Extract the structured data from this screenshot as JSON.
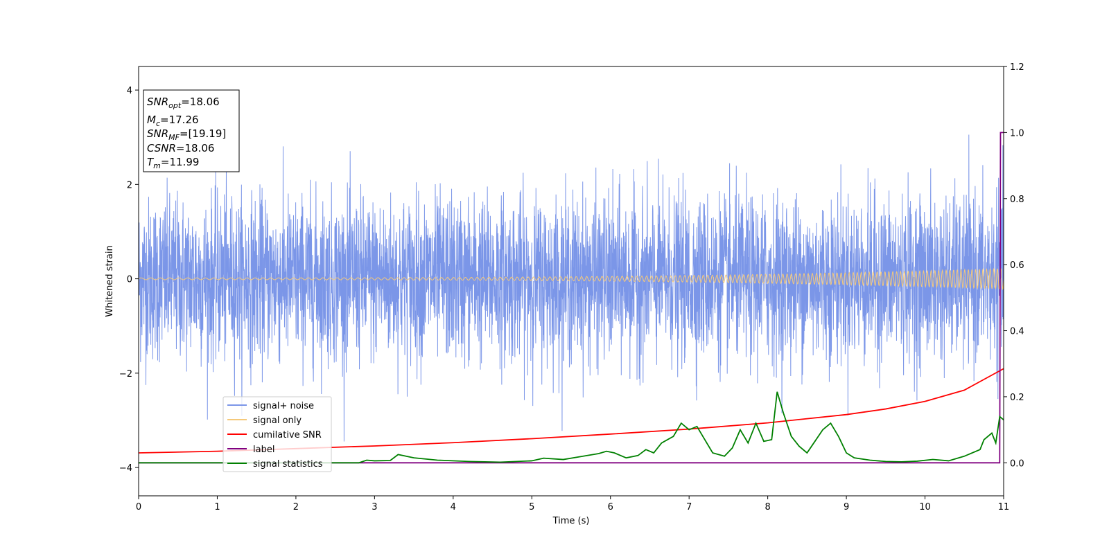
{
  "chart_data": {
    "type": "line",
    "xlabel": "Time (s)",
    "ylabel": "Whitened strain",
    "xlim": [
      0,
      11
    ],
    "ylim_left": [
      -4.6,
      4.5
    ],
    "ylim_right": [
      -0.1,
      1.2
    ],
    "x_ticks": [
      0,
      1,
      2,
      3,
      4,
      5,
      6,
      7,
      8,
      9,
      10,
      11
    ],
    "y_ticks_left": [
      -4,
      -2,
      0,
      2,
      4
    ],
    "y_ticks_right": [
      0.0,
      0.2,
      0.4,
      0.6,
      0.8,
      1.0,
      1.2
    ],
    "y_tick_labels_right": [
      "0.0",
      "0.2",
      "0.4",
      "0.6",
      "0.8",
      "1.0",
      "1.2"
    ],
    "grid": false,
    "legend_position": "lower-left",
    "series": [
      {
        "name": "signal+ noise",
        "color": "#7b96e8",
        "axis": "left",
        "kind": "noise",
        "mean": 0,
        "typical_range": [
          -1.8,
          1.8
        ],
        "peak_max": 3.4,
        "peak_min": -4.1
      },
      {
        "name": "signal only",
        "color": "#f5c97a",
        "axis": "left",
        "kind": "chirp",
        "amplitude_start": 0.02,
        "amplitude_end": 0.22
      },
      {
        "name": "cumilative SNR",
        "color": "#ff0000",
        "axis": "right",
        "x": [
          0,
          1,
          2,
          3,
          4,
          5,
          6,
          7,
          8,
          9,
          9.5,
          10,
          10.5,
          11
        ],
        "y": [
          0.03,
          0.035,
          0.043,
          0.051,
          0.061,
          0.073,
          0.087,
          0.102,
          0.121,
          0.146,
          0.163,
          0.186,
          0.22,
          0.285
        ]
      },
      {
        "name": "label",
        "color": "#800080",
        "axis": "right",
        "x": [
          0,
          10.95,
          10.96,
          11
        ],
        "y": [
          0.0,
          0.0,
          1.0,
          1.0
        ]
      },
      {
        "name": "signal statistics",
        "color": "#008000",
        "axis": "right",
        "x": [
          0,
          1,
          2,
          2.8,
          2.9,
          3.0,
          3.2,
          3.3,
          3.5,
          3.8,
          4.2,
          4.6,
          5.0,
          5.15,
          5.4,
          5.6,
          5.85,
          5.95,
          6.05,
          6.2,
          6.35,
          6.45,
          6.55,
          6.65,
          6.8,
          6.9,
          7.0,
          7.1,
          7.2,
          7.3,
          7.45,
          7.55,
          7.65,
          7.75,
          7.85,
          7.95,
          8.05,
          8.12,
          8.2,
          8.3,
          8.4,
          8.5,
          8.6,
          8.7,
          8.8,
          8.9,
          9.0,
          9.1,
          9.3,
          9.5,
          9.7,
          9.9,
          10.1,
          10.3,
          10.5,
          10.7,
          10.75,
          10.85,
          10.9,
          10.95,
          11.0
        ],
        "y": [
          0.0,
          0.0,
          0.0,
          0.0,
          0.008,
          0.006,
          0.007,
          0.025,
          0.015,
          0.008,
          0.004,
          0.002,
          0.006,
          0.014,
          0.01,
          0.018,
          0.028,
          0.035,
          0.03,
          0.015,
          0.022,
          0.04,
          0.03,
          0.06,
          0.08,
          0.12,
          0.1,
          0.11,
          0.07,
          0.03,
          0.02,
          0.045,
          0.1,
          0.06,
          0.12,
          0.065,
          0.07,
          0.215,
          0.15,
          0.08,
          0.05,
          0.03,
          0.065,
          0.1,
          0.12,
          0.08,
          0.03,
          0.015,
          0.008,
          0.004,
          0.003,
          0.005,
          0.01,
          0.006,
          0.02,
          0.04,
          0.07,
          0.09,
          0.06,
          0.14,
          0.13
        ]
      }
    ],
    "annotation": {
      "lines": [
        {
          "sym": "SNR",
          "sub": "opt",
          "value": "=18.06"
        },
        {
          "sym": "M",
          "sub": "c",
          "value": "=17.26"
        },
        {
          "sym": "SNR",
          "sub": "MF",
          "value": "=[19.19]"
        },
        {
          "sym": "CSNR",
          "sub": "",
          "value": "=18.06"
        },
        {
          "sym": "T",
          "sub": "m",
          "value": "=11.99"
        }
      ]
    }
  }
}
